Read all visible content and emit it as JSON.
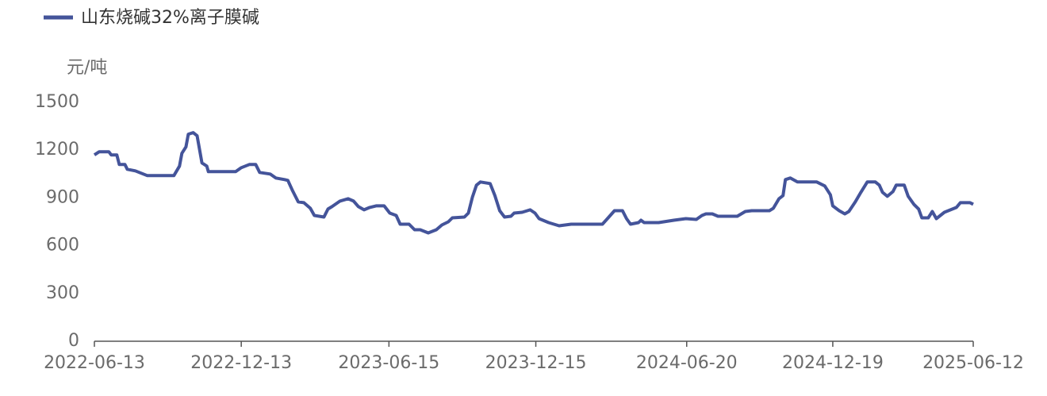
{
  "chart_data": {
    "type": "line",
    "y_label": "元/吨",
    "xlim": [
      "2022-06-13",
      "2025-06-12"
    ],
    "xticks": [
      "2022-06-13",
      "2022-12-13",
      "2023-06-15",
      "2023-12-15",
      "2024-06-20",
      "2024-12-19",
      "2025-06-12"
    ],
    "ylim": [
      0,
      1500
    ],
    "yticks": [
      0,
      300,
      600,
      900,
      1200,
      1500
    ],
    "grid": false,
    "legend": "top-left",
    "x": [
      "2022-06-13",
      "2022-06-19",
      "2022-07-01",
      "2022-07-04",
      "2022-07-11",
      "2022-07-14",
      "2022-07-21",
      "2022-07-24",
      "2022-08-03",
      "2022-08-18",
      "2022-09-20",
      "2022-09-27",
      "2022-09-30",
      "2022-10-05",
      "2022-10-08",
      "2022-10-14",
      "2022-10-19",
      "2022-10-25",
      "2022-10-31",
      "2022-11-02",
      "2022-12-06",
      "2022-12-13",
      "2022-12-23",
      "2022-12-31",
      "2023-01-05",
      "2023-01-18",
      "2023-01-25",
      "2023-02-05",
      "2023-02-09",
      "2023-02-15",
      "2023-02-22",
      "2023-03-01",
      "2023-03-09",
      "2023-03-14",
      "2023-03-26",
      "2023-03-31",
      "2023-04-05",
      "2023-04-15",
      "2023-04-25",
      "2023-05-02",
      "2023-05-08",
      "2023-05-15",
      "2023-05-22",
      "2023-05-30",
      "2023-06-09",
      "2023-06-16",
      "2023-06-24",
      "2023-06-29",
      "2023-07-10",
      "2023-07-17",
      "2023-07-24",
      "2023-08-03",
      "2023-08-13",
      "2023-08-20",
      "2023-08-28",
      "2023-09-02",
      "2023-09-17",
      "2023-09-22",
      "2023-09-27",
      "2023-10-02",
      "2023-10-07",
      "2023-10-19",
      "2023-10-25",
      "2023-10-31",
      "2023-11-06",
      "2023-11-14",
      "2023-11-18",
      "2023-11-28",
      "2023-12-08",
      "2023-12-14",
      "2023-12-19",
      "2023-12-31",
      "2024-01-13",
      "2024-01-28",
      "2024-03-07",
      "2024-03-15",
      "2024-03-22",
      "2024-04-01",
      "2024-04-06",
      "2024-04-11",
      "2024-04-21",
      "2024-04-24",
      "2024-04-28",
      "2024-05-16",
      "2024-06-04",
      "2024-06-19",
      "2024-07-02",
      "2024-07-09",
      "2024-07-14",
      "2024-07-22",
      "2024-07-29",
      "2024-08-08",
      "2024-08-22",
      "2024-09-01",
      "2024-09-09",
      "2024-10-01",
      "2024-10-06",
      "2024-10-13",
      "2024-10-18",
      "2024-10-21",
      "2024-10-27",
      "2024-11-05",
      "2024-11-29",
      "2024-12-09",
      "2024-12-16",
      "2024-12-19",
      "2024-12-27",
      "2025-01-03",
      "2025-01-08",
      "2025-01-16",
      "2025-01-23",
      "2025-01-31",
      "2025-02-10",
      "2025-02-15",
      "2025-02-19",
      "2025-02-25",
      "2025-03-04",
      "2025-03-08",
      "2025-03-18",
      "2025-03-23",
      "2025-03-30",
      "2025-04-05",
      "2025-04-09",
      "2025-04-17",
      "2025-04-22",
      "2025-04-27",
      "2025-05-07",
      "2025-05-22",
      "2025-05-27",
      "2025-06-08",
      "2025-06-12"
    ],
    "series": [
      {
        "name": "山东烧碱32%离子膜碱",
        "color": "#44549a",
        "values": [
          1170,
          1190,
          1190,
          1170,
          1170,
          1110,
          1110,
          1080,
          1070,
          1040,
          1040,
          1100,
          1180,
          1220,
          1300,
          1310,
          1290,
          1120,
          1100,
          1065,
          1065,
          1090,
          1110,
          1110,
          1060,
          1050,
          1025,
          1015,
          1010,
          945,
          875,
          870,
          835,
          790,
          780,
          830,
          845,
          880,
          895,
          880,
          845,
          825,
          840,
          850,
          850,
          805,
          790,
          735,
          735,
          700,
          700,
          680,
          700,
          730,
          750,
          775,
          780,
          805,
          905,
          980,
          1000,
          990,
          915,
          820,
          780,
          785,
          805,
          810,
          825,
          805,
          770,
          745,
          725,
          735,
          735,
          780,
          820,
          820,
          770,
          735,
          745,
          760,
          745,
          745,
          760,
          770,
          765,
          790,
          800,
          800,
          785,
          785,
          785,
          815,
          820,
          820,
          835,
          895,
          915,
          1015,
          1025,
          1000,
          1000,
          975,
          920,
          850,
          820,
          800,
          815,
          875,
          935,
          1000,
          1000,
          980,
          935,
          910,
          940,
          980,
          980,
          910,
          860,
          830,
          775,
          775,
          815,
          770,
          810,
          840,
          870,
          870,
          860
        ]
      }
    ]
  }
}
